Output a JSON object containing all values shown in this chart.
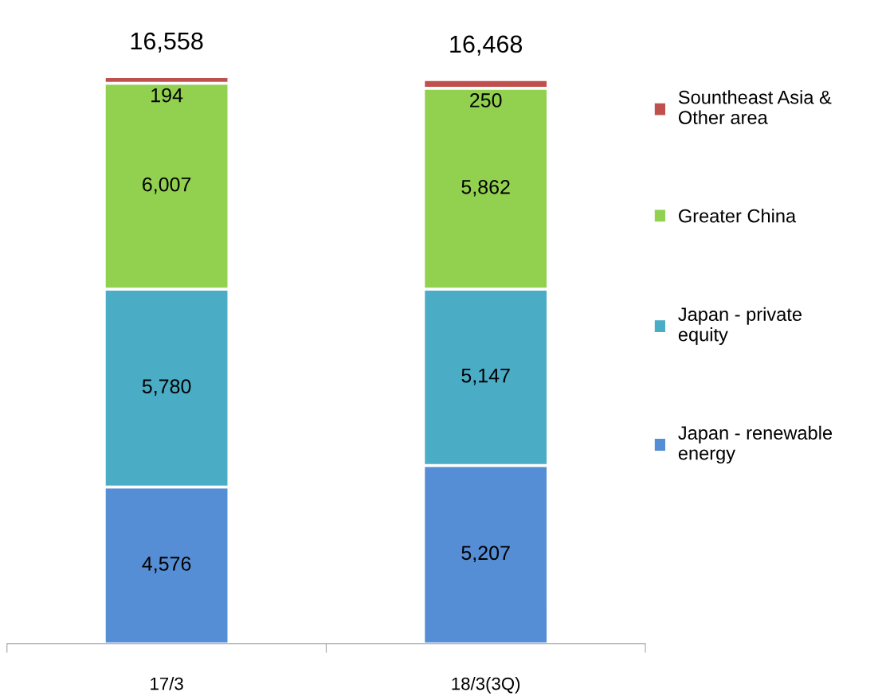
{
  "chart_data": {
    "type": "bar",
    "stacked": true,
    "categories": [
      "17/3",
      "18/3(3Q)"
    ],
    "series": [
      {
        "name": "Japan - renewable\nenergy",
        "color": "#558ed5",
        "values": [
          4576,
          5207
        ],
        "value_labels": [
          "4,576",
          "5,207"
        ]
      },
      {
        "name": "Japan - private\nequity",
        "color": "#4bacc6",
        "values": [
          5780,
          5147
        ],
        "value_labels": [
          "5,780",
          "5,147"
        ]
      },
      {
        "name": "Greater China",
        "color": "#92d050",
        "values": [
          6007,
          5862
        ],
        "value_labels": [
          "6,007",
          "5,862"
        ]
      },
      {
        "name": "Sountheast Asia &\nOther area",
        "color": "#c0504d",
        "values": [
          194,
          250
        ],
        "value_labels": [
          "194",
          "250"
        ]
      }
    ],
    "totals": [
      "16,558",
      "16,468"
    ],
    "legend": "right",
    "grid": false,
    "tick_labels": "x"
  }
}
